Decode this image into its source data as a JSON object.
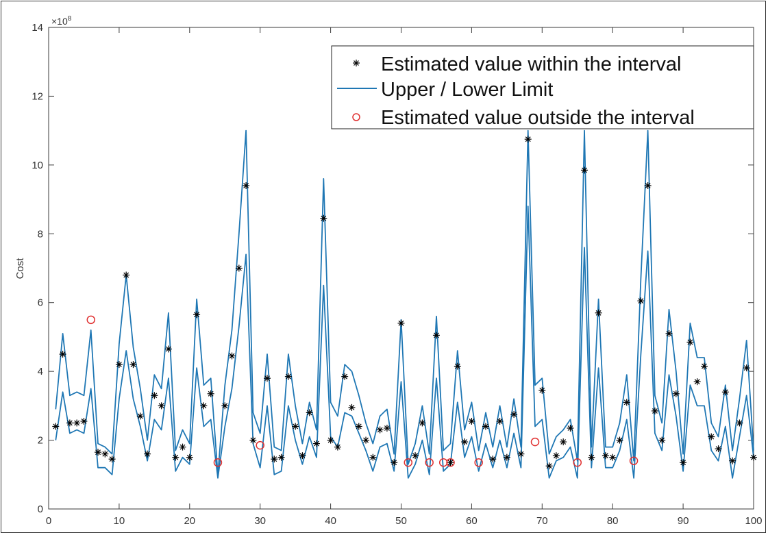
{
  "chart_data": {
    "type": "line",
    "ylabel": "Cost",
    "xlabel": "",
    "y_exponent_label": "×10",
    "y_exponent_power": "8",
    "xlim": [
      0,
      100
    ],
    "ylim": [
      0,
      14
    ],
    "xticks": [
      0,
      10,
      20,
      30,
      40,
      50,
      60,
      70,
      80,
      90,
      100
    ],
    "yticks": [
      0,
      2,
      4,
      6,
      8,
      10,
      12,
      14
    ],
    "legend_position": "top-right",
    "colors": {
      "line": "#1f77b4",
      "star": "#000000",
      "circle": "#e03030"
    },
    "legend": [
      {
        "marker": "star",
        "label": "Estimated value within the interval"
      },
      {
        "marker": "line",
        "label": "Upper / Lower Limit"
      },
      {
        "marker": "circle",
        "label": "Estimated value outside the interval"
      }
    ],
    "x": [
      1,
      2,
      3,
      4,
      5,
      6,
      7,
      8,
      9,
      10,
      11,
      12,
      13,
      14,
      15,
      16,
      17,
      18,
      19,
      20,
      21,
      22,
      23,
      24,
      25,
      26,
      27,
      28,
      29,
      30,
      31,
      32,
      33,
      34,
      35,
      36,
      37,
      38,
      39,
      40,
      41,
      42,
      43,
      44,
      45,
      46,
      47,
      48,
      49,
      50,
      51,
      52,
      53,
      54,
      55,
      56,
      57,
      58,
      59,
      60,
      61,
      62,
      63,
      64,
      65,
      66,
      67,
      68,
      69,
      70,
      71,
      72,
      73,
      74,
      75,
      76,
      77,
      78,
      79,
      80,
      81,
      82,
      83,
      84,
      85,
      86,
      87,
      88,
      89,
      90,
      91,
      92,
      93,
      94,
      95,
      96,
      97,
      98,
      99,
      100
    ],
    "series": [
      {
        "name": "Upper / Lower Limit",
        "values": [
          2.9,
          5.1,
          3.3,
          3.4,
          3.3,
          5.2,
          1.9,
          1.8,
          1.6,
          4.8,
          6.8,
          4.7,
          3.5,
          2.0,
          3.9,
          3.5,
          5.7,
          1.7,
          2.3,
          1.9,
          6.1,
          3.6,
          3.8,
          1.0,
          3.6,
          5.2,
          8.0,
          11.0,
          2.8,
          2.2,
          4.5,
          1.8,
          1.7,
          4.5,
          3.0,
          1.9,
          3.1,
          2.3,
          9.6,
          3.1,
          2.7,
          4.2,
          4.0,
          3.3,
          2.5,
          1.9,
          2.7,
          2.9,
          1.6,
          5.5,
          1.3,
          1.9,
          3.0,
          1.6,
          5.6,
          1.7,
          1.9,
          4.6,
          2.3,
          3.1,
          1.7,
          2.8,
          1.8,
          3.0,
          1.8,
          3.2,
          1.8,
          11.0,
          3.6,
          3.8,
          1.6,
          2.1,
          2.3,
          2.6,
          1.4,
          11.0,
          1.8,
          6.1,
          1.8,
          1.8,
          2.5,
          3.9,
          1.4,
          6.7,
          11.0,
          3.3,
          2.5,
          5.8,
          4.0,
          1.6,
          5.4,
          4.4,
          4.4,
          2.5,
          2.1,
          3.6,
          1.7,
          3.2,
          4.9,
          1.7
        ]
      },
      {
        "name": "Upper / Lower Limit",
        "values": [
          2.0,
          3.4,
          2.2,
          2.3,
          2.2,
          3.5,
          1.2,
          1.2,
          1.0,
          3.2,
          4.6,
          3.2,
          2.4,
          1.4,
          2.6,
          2.3,
          3.8,
          1.1,
          1.5,
          1.3,
          4.1,
          2.4,
          2.6,
          0.9,
          2.4,
          3.5,
          5.3,
          7.4,
          1.9,
          1.2,
          3.0,
          1.0,
          1.1,
          3.0,
          2.0,
          1.3,
          2.1,
          1.5,
          6.5,
          2.1,
          1.8,
          2.8,
          2.7,
          2.2,
          1.7,
          1.1,
          1.8,
          1.9,
          1.1,
          3.7,
          0.9,
          1.3,
          2.0,
          1.0,
          3.8,
          1.1,
          1.3,
          3.1,
          1.5,
          2.1,
          1.1,
          1.9,
          1.2,
          2.0,
          1.2,
          2.2,
          1.2,
          8.8,
          2.4,
          2.6,
          0.9,
          1.4,
          1.5,
          1.8,
          0.9,
          7.6,
          1.2,
          4.1,
          1.2,
          1.2,
          1.7,
          2.6,
          0.9,
          4.5,
          7.5,
          2.2,
          1.7,
          3.9,
          2.7,
          1.1,
          3.6,
          3.0,
          3.0,
          1.7,
          1.4,
          2.4,
          0.9,
          2.1,
          3.3,
          1.5
        ]
      },
      {
        "name": "Estimated value within the interval",
        "values": [
          2.4,
          4.5,
          2.5,
          2.5,
          2.55,
          null,
          1.65,
          1.6,
          1.45,
          4.2,
          6.8,
          4.2,
          2.7,
          1.6,
          3.3,
          3.0,
          4.65,
          1.5,
          1.8,
          1.5,
          5.65,
          3.0,
          3.35,
          null,
          3.0,
          4.45,
          7.0,
          9.4,
          2.0,
          null,
          3.8,
          1.45,
          1.5,
          3.85,
          2.4,
          1.55,
          2.8,
          1.9,
          8.45,
          2.0,
          1.8,
          3.85,
          2.95,
          2.4,
          2.0,
          1.5,
          2.3,
          2.35,
          1.35,
          5.4,
          null,
          1.55,
          2.5,
          null,
          5.05,
          null,
          1.35,
          4.15,
          1.95,
          2.55,
          null,
          2.4,
          1.45,
          2.55,
          1.5,
          2.75,
          1.6,
          10.75,
          null,
          3.45,
          1.25,
          1.55,
          1.95,
          2.35,
          null,
          9.85,
          1.5,
          5.7,
          1.55,
          1.5,
          2.0,
          3.1,
          null,
          6.05,
          9.4,
          2.85,
          2.0,
          5.1,
          3.35,
          1.35,
          4.85,
          3.7,
          4.15,
          2.1,
          1.75,
          3.4,
          1.4,
          2.5,
          4.1,
          1.5
        ]
      },
      {
        "name": "Estimated value outside the interval",
        "x": [
          6,
          24,
          30,
          51,
          54,
          56,
          57,
          61,
          69,
          75,
          83
        ],
        "values": [
          5.5,
          1.35,
          1.85,
          1.35,
          1.35,
          1.35,
          1.35,
          1.35,
          1.95,
          1.35,
          1.4
        ]
      }
    ]
  }
}
